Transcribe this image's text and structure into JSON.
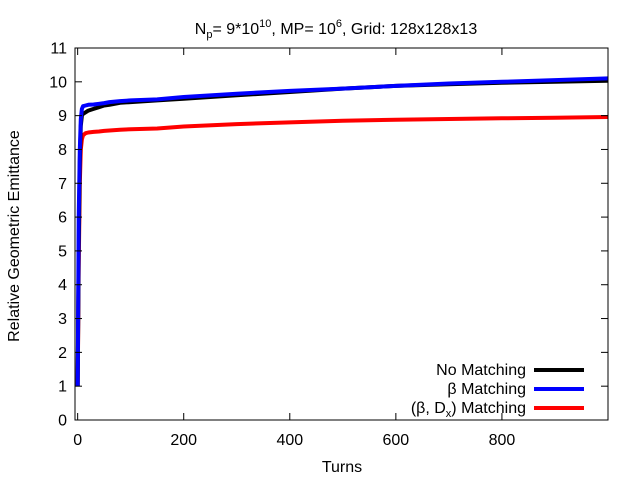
{
  "chart_data": {
    "type": "line",
    "title": {
      "p1": "N",
      "p1_sub": "p",
      "p2": "= 9*10",
      "p2_sup": "10",
      "p3": ", MP= 10",
      "p3_sup": "6",
      "p4": ", Grid: 128x128x13"
    },
    "xlabel": "Turns",
    "ylabel": "Relative Geometric Emittance",
    "xlim": [
      -5,
      1000
    ],
    "ylim": [
      0,
      11
    ],
    "xticks": [
      0,
      200,
      400,
      600,
      800
    ],
    "yticks": [
      0,
      1,
      2,
      3,
      4,
      5,
      6,
      7,
      8,
      9,
      10,
      11
    ],
    "legend_position": "bottom-right",
    "series": [
      {
        "name": "No Matching",
        "color": "#000000",
        "x": [
          0,
          2,
          4,
          6,
          8,
          10,
          15,
          20,
          30,
          40,
          50,
          60,
          80,
          100,
          150,
          200,
          300,
          400,
          500,
          600,
          700,
          800,
          900,
          1000
        ],
        "y": [
          1.0,
          5.0,
          7.6,
          8.7,
          9.0,
          9.05,
          9.1,
          9.15,
          9.2,
          9.25,
          9.3,
          9.32,
          9.38,
          9.4,
          9.45,
          9.5,
          9.6,
          9.7,
          9.8,
          9.88,
          9.93,
          9.97,
          10.0,
          10.03
        ]
      },
      {
        "name": "β Matching",
        "color": "#0000ff",
        "x": [
          0,
          2,
          4,
          6,
          8,
          10,
          15,
          20,
          30,
          40,
          50,
          60,
          80,
          100,
          150,
          200,
          300,
          400,
          500,
          600,
          700,
          800,
          900,
          1000
        ],
        "y": [
          1.0,
          6.0,
          8.0,
          8.9,
          9.2,
          9.28,
          9.3,
          9.32,
          9.33,
          9.35,
          9.37,
          9.4,
          9.43,
          9.45,
          9.48,
          9.55,
          9.65,
          9.73,
          9.8,
          9.88,
          9.95,
          10.0,
          10.05,
          10.1
        ]
      },
      {
        "name": "(β, D_x) Matching",
        "name_main": "(β, D",
        "name_sub": "x",
        "name_tail": ") Matching",
        "color": "#ff0000",
        "x": [
          0,
          2,
          4,
          6,
          8,
          10,
          15,
          20,
          30,
          40,
          50,
          60,
          80,
          100,
          150,
          200,
          300,
          400,
          500,
          600,
          700,
          800,
          900,
          1000
        ],
        "y": [
          1.0,
          4.5,
          7.0,
          8.0,
          8.3,
          8.42,
          8.48,
          8.5,
          8.52,
          8.53,
          8.55,
          8.56,
          8.58,
          8.6,
          8.62,
          8.68,
          8.75,
          8.8,
          8.85,
          8.88,
          8.9,
          8.92,
          8.94,
          8.96
        ]
      }
    ]
  }
}
